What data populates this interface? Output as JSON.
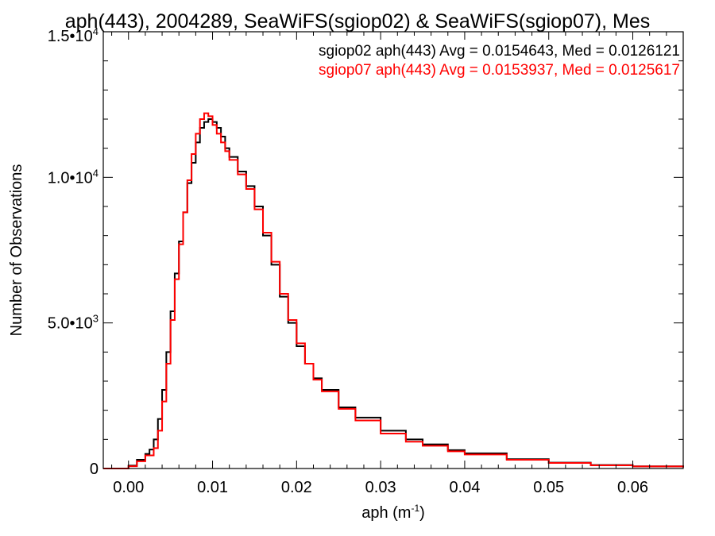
{
  "chart_data": {
    "type": "line",
    "step": true,
    "title": "aph(443), 2004289, SeaWiFS(sgiop02) & SeaWiFS(sgiop07), Mes",
    "xlabel": "aph (m",
    "xlabel_sup": "-1",
    "xlabel_end": ")",
    "ylabel": "Number of Observations",
    "xlim": [
      -0.003,
      0.066
    ],
    "ylim": [
      0,
      15000
    ],
    "x_ticks": [
      0.0,
      0.01,
      0.02,
      0.03,
      0.04,
      0.05,
      0.06
    ],
    "x_tick_labels": [
      "0.00",
      "0.01",
      "0.02",
      "0.03",
      "0.04",
      "0.05",
      "0.06"
    ],
    "y_ticks": [
      0,
      5000,
      10000,
      15000
    ],
    "y_tick_labels": [
      {
        "base": "0",
        "exp": ""
      },
      {
        "base": "5.0•10",
        "exp": "3"
      },
      {
        "base": "1.0•10",
        "exp": "4"
      },
      {
        "base": "1.5•10",
        "exp": "4"
      }
    ],
    "legend_placement": "top-right",
    "series": [
      {
        "name": "sgiop02 aph(443) Avg = 0.0154643, Med = 0.0126121",
        "color": "#000000",
        "points": [
          [
            -0.003,
            0
          ],
          [
            -0.001,
            0
          ],
          [
            0.0,
            100
          ],
          [
            0.001,
            300
          ],
          [
            0.002,
            500
          ],
          [
            0.0025,
            650
          ],
          [
            0.003,
            1000
          ],
          [
            0.0035,
            1700
          ],
          [
            0.004,
            2700
          ],
          [
            0.0045,
            4000
          ],
          [
            0.005,
            5400
          ],
          [
            0.0055,
            6700
          ],
          [
            0.006,
            7800
          ],
          [
            0.0065,
            8800
          ],
          [
            0.007,
            9800
          ],
          [
            0.0075,
            10500
          ],
          [
            0.008,
            11200
          ],
          [
            0.0085,
            11700
          ],
          [
            0.009,
            11900
          ],
          [
            0.0095,
            12000
          ],
          [
            0.01,
            11900
          ],
          [
            0.0105,
            11700
          ],
          [
            0.011,
            11400
          ],
          [
            0.0115,
            11000
          ],
          [
            0.012,
            10700
          ],
          [
            0.013,
            10200
          ],
          [
            0.014,
            9700
          ],
          [
            0.015,
            9000
          ],
          [
            0.016,
            8000
          ],
          [
            0.017,
            7000
          ],
          [
            0.018,
            5900
          ],
          [
            0.019,
            5000
          ],
          [
            0.02,
            4200
          ],
          [
            0.021,
            3600
          ],
          [
            0.022,
            3100
          ],
          [
            0.023,
            2700
          ],
          [
            0.025,
            2100
          ],
          [
            0.027,
            1750
          ],
          [
            0.03,
            1300
          ],
          [
            0.033,
            1000
          ],
          [
            0.035,
            830
          ],
          [
            0.038,
            630
          ],
          [
            0.04,
            520
          ],
          [
            0.045,
            320
          ],
          [
            0.05,
            200
          ],
          [
            0.055,
            120
          ],
          [
            0.06,
            75
          ],
          [
            0.066,
            40
          ]
        ]
      },
      {
        "name": "sgiop07 aph(443) Avg = 0.0153937, Med = 0.0125617",
        "color": "#ff0000",
        "points": [
          [
            -0.003,
            0
          ],
          [
            -0.0005,
            0
          ],
          [
            0.0,
            80
          ],
          [
            0.001,
            250
          ],
          [
            0.002,
            450
          ],
          [
            0.003,
            700
          ],
          [
            0.0035,
            1300
          ],
          [
            0.004,
            2300
          ],
          [
            0.0045,
            3600
          ],
          [
            0.005,
            5100
          ],
          [
            0.0055,
            6500
          ],
          [
            0.006,
            7700
          ],
          [
            0.0065,
            8800
          ],
          [
            0.007,
            9900
          ],
          [
            0.0075,
            10800
          ],
          [
            0.008,
            11500
          ],
          [
            0.0085,
            12000
          ],
          [
            0.009,
            12200
          ],
          [
            0.0095,
            12100
          ],
          [
            0.01,
            11800
          ],
          [
            0.0105,
            11500
          ],
          [
            0.011,
            11200
          ],
          [
            0.0115,
            10900
          ],
          [
            0.012,
            10600
          ],
          [
            0.013,
            10100
          ],
          [
            0.014,
            9600
          ],
          [
            0.015,
            8900
          ],
          [
            0.016,
            8100
          ],
          [
            0.017,
            7100
          ],
          [
            0.018,
            6000
          ],
          [
            0.019,
            5100
          ],
          [
            0.02,
            4300
          ],
          [
            0.021,
            3600
          ],
          [
            0.022,
            3050
          ],
          [
            0.023,
            2650
          ],
          [
            0.025,
            2050
          ],
          [
            0.027,
            1650
          ],
          [
            0.03,
            1200
          ],
          [
            0.033,
            920
          ],
          [
            0.035,
            780
          ],
          [
            0.038,
            590
          ],
          [
            0.04,
            480
          ],
          [
            0.045,
            300
          ],
          [
            0.05,
            190
          ],
          [
            0.055,
            110
          ],
          [
            0.06,
            70
          ],
          [
            0.066,
            35
          ]
        ]
      }
    ]
  }
}
